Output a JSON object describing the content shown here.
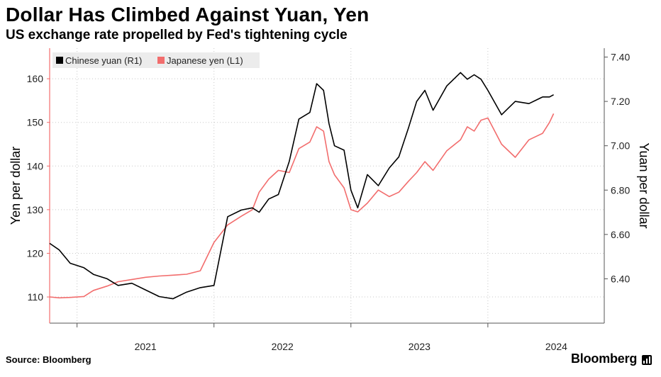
{
  "title": "Dollar Has Climbed Against Yuan, Yen",
  "subtitle": "US exchange rate propelled by Fed's tightening cycle",
  "source": "Source: Bloomberg",
  "brand": "Bloomberg",
  "chart_data": {
    "type": "line",
    "title": "Dollar Has Climbed Against Yuan, Yen",
    "subtitle": "US exchange rate propelled by Fed's tightening cycle",
    "x_ticks": [
      "2021",
      "2022",
      "2023",
      "2024"
    ],
    "x_tick_values": [
      2021.0,
      2022.0,
      2023.0,
      2024.0
    ],
    "xlim": [
      2020.8,
      2024.85
    ],
    "y_left": {
      "label": "Yen per dollar",
      "ticks": [
        110,
        120,
        130,
        140,
        150,
        160
      ],
      "range": [
        104,
        167
      ]
    },
    "y_right": {
      "label": "Yuan per dollar",
      "ticks": [
        "6.40",
        "6.60",
        "6.80",
        "7.00",
        "7.20",
        "7.40"
      ],
      "tick_values": [
        6.4,
        6.6,
        6.8,
        7.0,
        7.2,
        7.4
      ],
      "range": [
        6.2,
        7.44
      ]
    },
    "grid": true,
    "legend_position": "top-left",
    "series": [
      {
        "name": "Chinese yuan (R1)",
        "axis": "right",
        "color": "#000000",
        "x": [
          2020.8,
          2020.87,
          2020.95,
          2021.05,
          2021.12,
          2021.22,
          2021.3,
          2021.4,
          2021.5,
          2021.6,
          2021.7,
          2021.8,
          2021.9,
          2022.0,
          2022.1,
          2022.2,
          2022.28,
          2022.33,
          2022.4,
          2022.47,
          2022.55,
          2022.62,
          2022.7,
          2022.75,
          2022.8,
          2022.84,
          2022.88,
          2022.95,
          2023.0,
          2023.05,
          2023.12,
          2023.2,
          2023.28,
          2023.35,
          2023.42,
          2023.48,
          2023.54,
          2023.6,
          2023.7,
          2023.8,
          2023.85,
          2023.9,
          2023.95,
          2024.0,
          2024.1,
          2024.2,
          2024.3,
          2024.4,
          2024.45,
          2024.48
        ],
        "values": [
          6.56,
          6.53,
          6.47,
          6.45,
          6.42,
          6.4,
          6.37,
          6.38,
          6.35,
          6.32,
          6.31,
          6.34,
          6.36,
          6.37,
          6.68,
          6.71,
          6.72,
          6.7,
          6.76,
          6.78,
          6.93,
          7.12,
          7.15,
          7.28,
          7.25,
          7.1,
          7.0,
          6.98,
          6.8,
          6.72,
          6.87,
          6.82,
          6.9,
          6.95,
          7.08,
          7.2,
          7.25,
          7.16,
          7.27,
          7.33,
          7.3,
          7.32,
          7.3,
          7.25,
          7.14,
          7.2,
          7.19,
          7.22,
          7.22,
          7.23
        ]
      },
      {
        "name": "Japanese yen (L1)",
        "axis": "left",
        "color": "#f26d6d",
        "x": [
          2020.8,
          2020.87,
          2020.95,
          2021.05,
          2021.12,
          2021.22,
          2021.3,
          2021.4,
          2021.5,
          2021.6,
          2021.7,
          2021.8,
          2021.9,
          2022.0,
          2022.1,
          2022.2,
          2022.28,
          2022.33,
          2022.4,
          2022.47,
          2022.55,
          2022.62,
          2022.7,
          2022.75,
          2022.8,
          2022.84,
          2022.88,
          2022.95,
          2023.0,
          2023.05,
          2023.12,
          2023.2,
          2023.28,
          2023.35,
          2023.42,
          2023.48,
          2023.54,
          2023.6,
          2023.7,
          2023.8,
          2023.85,
          2023.9,
          2023.95,
          2024.0,
          2024.1,
          2024.2,
          2024.3,
          2024.4,
          2024.45,
          2024.48
        ],
        "values": [
          110.0,
          109.8,
          109.9,
          110.1,
          111.5,
          112.5,
          113.5,
          114.0,
          114.5,
          114.8,
          115.0,
          115.2,
          116.0,
          122.5,
          126.5,
          128.5,
          130.0,
          134.0,
          137.0,
          139.0,
          138.5,
          144.0,
          145.5,
          149.0,
          148.0,
          141.0,
          138.0,
          135.0,
          130.0,
          129.5,
          131.5,
          134.5,
          133.0,
          134.0,
          136.5,
          138.5,
          141.0,
          139.0,
          143.5,
          146.0,
          149.0,
          148.0,
          150.5,
          151.0,
          145.0,
          142.0,
          146.0,
          147.5,
          150.0,
          152.0
        ]
      }
    ]
  }
}
